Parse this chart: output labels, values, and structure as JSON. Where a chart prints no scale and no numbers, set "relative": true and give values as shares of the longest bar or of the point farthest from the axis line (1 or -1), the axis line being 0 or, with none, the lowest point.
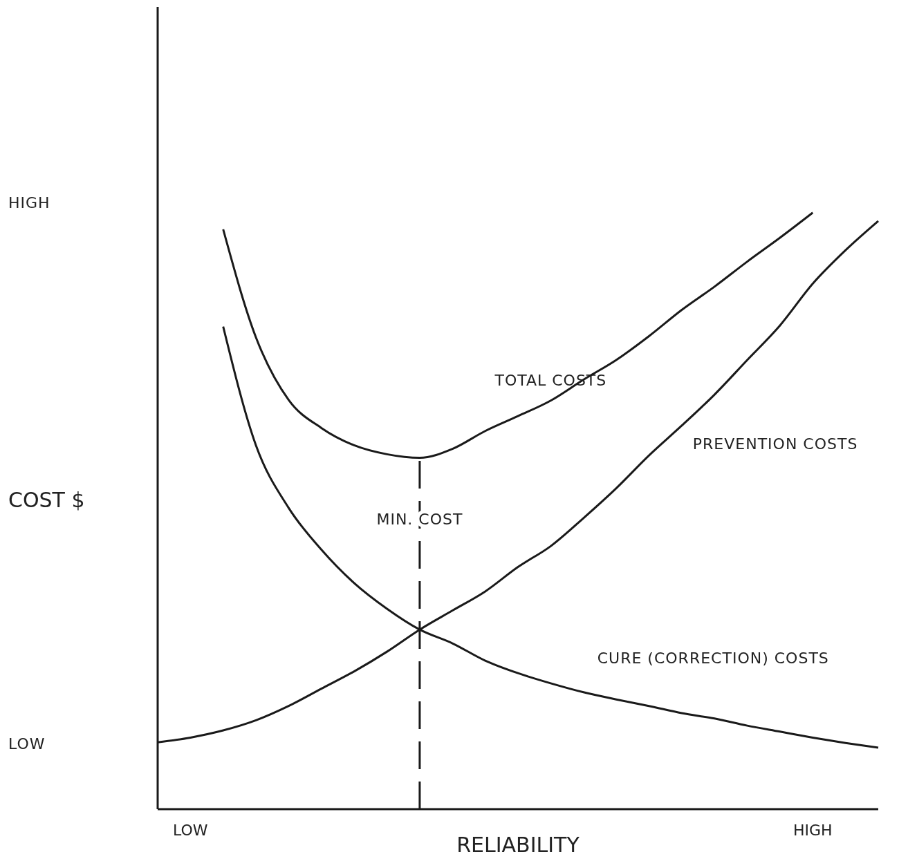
{
  "chart_data": {
    "type": "line",
    "relative": true,
    "xlabel": "RELIABILITY",
    "ylabel": "COST $",
    "categories": [
      null,
      "LOW",
      null,
      null,
      null,
      null,
      null,
      null,
      null,
      null,
      null,
      null,
      null,
      null,
      null,
      null,
      null,
      null,
      null,
      null,
      "HIGH",
      null,
      null
    ],
    "series": [
      {
        "name": "TOTAL COSTS",
        "color": "#1a1a1a",
        "values": [
          null,
          null,
          0.972,
          0.791,
          0.686,
          0.639,
          0.61,
          0.595,
          0.589,
          0.604,
          0.634,
          0.659,
          0.685,
          0.72,
          0.753,
          0.793,
          0.837,
          0.876,
          0.918,
          0.958,
          1,
          null,
          null
        ]
      },
      {
        "name": "PREVENTION COSTS",
        "color": "#1a1a1a",
        "values": [
          0.112,
          0.12,
          0.132,
          0.149,
          0.173,
          0.202,
          0.231,
          0.264,
          0.301,
          0.333,
          0.365,
          0.406,
          0.441,
          0.488,
          0.538,
          0.593,
          0.643,
          0.695,
          0.753,
          0.811,
          0.881,
          0.937,
          0.986
        ]
      },
      {
        "name": "CURE (CORRECTION) COSTS",
        "color": "#1a1a1a",
        "values": [
          null,
          null,
          0.809,
          0.61,
          0.505,
          0.435,
          0.379,
          0.336,
          0.301,
          0.278,
          0.249,
          0.228,
          0.211,
          0.196,
          0.184,
          0.173,
          0.161,
          0.152,
          0.14,
          0.13,
          0.12,
          0.111,
          0.103
        ]
      }
    ],
    "annotations": [
      "HIGH",
      "LOW",
      "MIN. COST"
    ]
  }
}
